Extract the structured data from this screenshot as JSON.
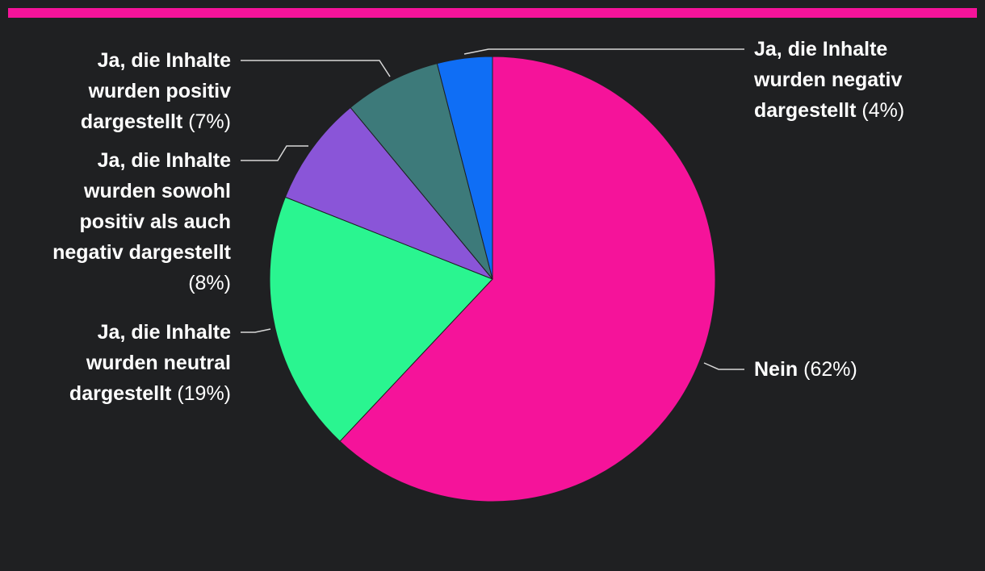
{
  "chart_data": {
    "type": "pie",
    "categories": [
      "Nein",
      "Ja, die Inhalte wurden neutral dargestellt",
      "Ja, die Inhalte wurden sowohl positiv als auch negativ dargestellt",
      "Ja, die Inhalte wurden positiv dargestellt",
      "Ja, die Inhalte wurden negativ dargestellt"
    ],
    "values": [
      62,
      19,
      8,
      7,
      4
    ],
    "value_labels": [
      "(62%)",
      "(19%)",
      "(8%)",
      "(7%)",
      "(4%)"
    ],
    "colors": [
      "#f5139a",
      "#2af590",
      "#8a55d8",
      "#3d7a7a",
      "#0f6ef5"
    ]
  }
}
